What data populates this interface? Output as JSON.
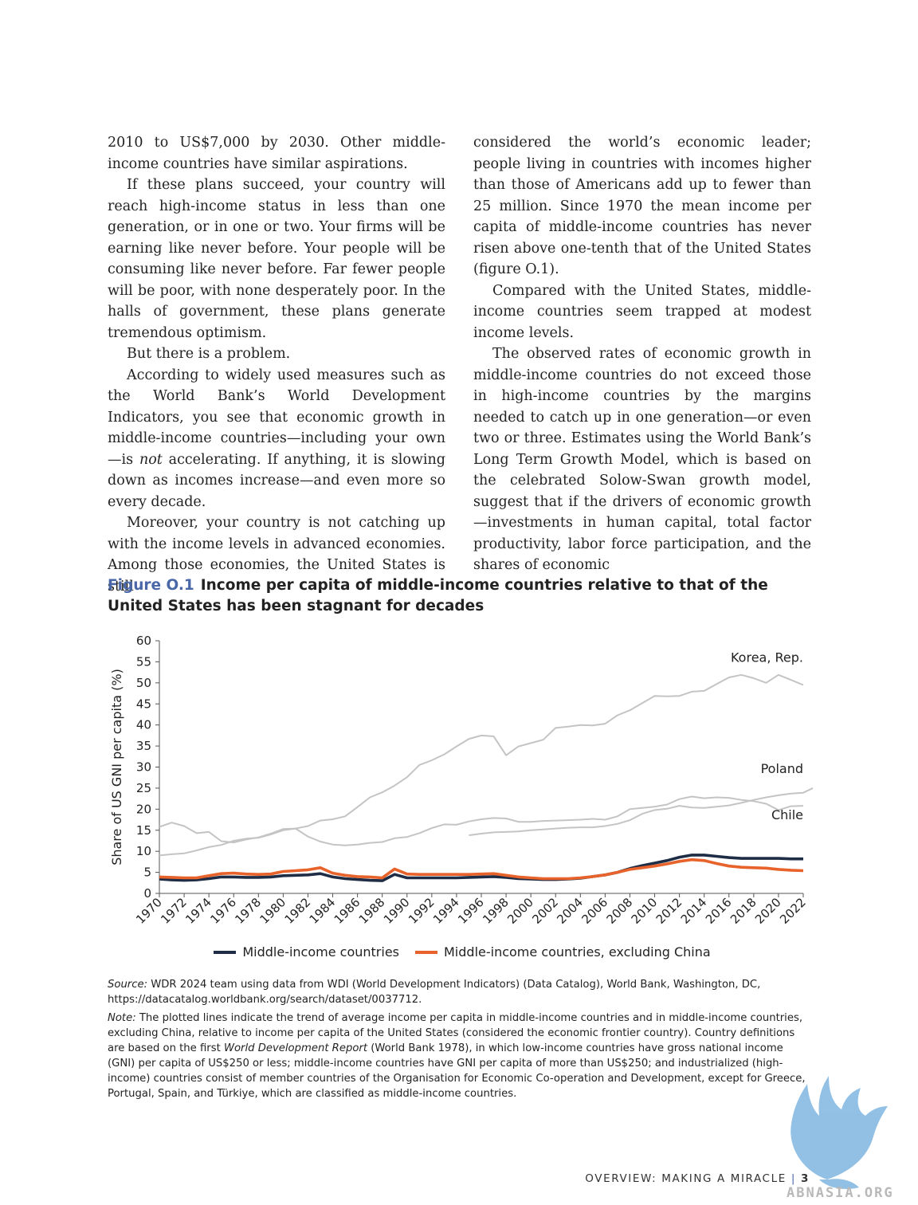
{
  "left_column": [
    "2010 to US$7,000 by 2030. Other middle-income countries have similar aspirations.",
    "If these plans succeed, your country will reach high-income status in less than one generation, or in one or two. Your firms will be earning like never before. Your people will be consuming like never before. Far fewer people will be poor, with none desperately poor. In the halls of government, these plans generate tremendous optimism.",
    "But there is a problem.",
    "According to widely used measures such as the World Bank’s World Development Indicators, you see that economic growth in middle-income countries—including your own—is",
    "not",
    "accelerating. If anything, it is slowing down as incomes increase—and even more so every decade.",
    "Moreover, your country is not catching up with the income levels in advanced economies. Among those economies, the United States is still"
  ],
  "right_column": [
    "considered the world’s economic leader; people living in countries with incomes higher than those of Americans add up to fewer than 25 million. Since 1970 the mean income per capita of middle-income countries has never risen above one-tenth that of the United States (figure O.1).",
    "Compared with the United States, middle-income countries seem trapped at modest income levels.",
    "The observed rates of economic growth in middle-income countries do not exceed those in high-income countries by the margins needed to catch up in one generation—or even two or three. Estimates using the World Bank’s Long Term Growth Model, which is based on the celebrated Solow-Swan growth model, suggest that if the drivers of economic growth—investments in human capital, total factor productivity, labor force participation, and the shares of economic"
  ],
  "figure": {
    "label": "Figure O.1",
    "title": "Income per capita of middle-income countries relative to that of the United States has been stagnant for decades"
  },
  "chart_data": {
    "type": "line",
    "ylabel": "Share of US GNI per capita (%)",
    "xlabel": "",
    "ylim": [
      0,
      60
    ],
    "yticks": [
      0,
      5,
      10,
      15,
      20,
      25,
      30,
      35,
      40,
      45,
      50,
      55,
      60
    ],
    "xlim": [
      1970,
      2022
    ],
    "xticks": [
      1970,
      1972,
      1974,
      1976,
      1978,
      1980,
      1982,
      1984,
      1986,
      1988,
      1990,
      1992,
      1994,
      1996,
      1998,
      2000,
      2002,
      2004,
      2006,
      2008,
      2010,
      2012,
      2014,
      2016,
      2018,
      2020,
      2022
    ],
    "grid": false,
    "legend_position": "bottom",
    "colors": {
      "middle": "#1e2d45",
      "excl_china": "#e8632b",
      "country": "#c4c4c4"
    },
    "series": [
      {
        "name": "Middle-income countries",
        "key": "middle",
        "x_start": 1970,
        "legend": true,
        "values": [
          3.4,
          3.2,
          3.1,
          3.2,
          3.5,
          3.9,
          3.9,
          3.8,
          3.8,
          3.9,
          4.2,
          4.3,
          4.4,
          4.7,
          3.9,
          3.5,
          3.3,
          3.1,
          3.0,
          4.5,
          3.7,
          3.7,
          3.7,
          3.7,
          3.7,
          3.8,
          3.9,
          4.0,
          3.8,
          3.5,
          3.4,
          3.3,
          3.3,
          3.4,
          3.6,
          4.0,
          4.4,
          5.0,
          5.9,
          6.6,
          7.2,
          7.8,
          8.6,
          9.1,
          9.1,
          8.8,
          8.5,
          8.3,
          8.3,
          8.3,
          8.3,
          8.2,
          8.2
        ]
      },
      {
        "name": "Middle-income countries, excluding China",
        "key": "excl_china",
        "x_start": 1970,
        "legend": true,
        "values": [
          3.9,
          3.8,
          3.7,
          3.7,
          4.2,
          4.7,
          4.8,
          4.6,
          4.5,
          4.6,
          5.2,
          5.4,
          5.6,
          6.1,
          4.8,
          4.3,
          4.0,
          3.9,
          3.7,
          5.8,
          4.6,
          4.5,
          4.5,
          4.5,
          4.5,
          4.5,
          4.6,
          4.7,
          4.3,
          3.9,
          3.7,
          3.5,
          3.5,
          3.5,
          3.7,
          4.0,
          4.4,
          5.0,
          5.7,
          6.1,
          6.5,
          7.0,
          7.6,
          8.0,
          7.8,
          7.1,
          6.5,
          6.2,
          6.1,
          6.0,
          5.7,
          5.5,
          5.4
        ]
      },
      {
        "name": "Korea, Rep.",
        "key": "country",
        "x_start": 1970,
        "legend": false,
        "label_year": 2022,
        "label_value": 55,
        "values": [
          9.0,
          9.3,
          9.5,
          10.2,
          11.0,
          11.5,
          12.5,
          13.0,
          13.2,
          14.0,
          15.0,
          15.4,
          16.0,
          17.3,
          17.6,
          18.3,
          20.5,
          22.8,
          24.0,
          25.6,
          27.6,
          30.5,
          31.6,
          33.0,
          34.9,
          36.7,
          37.5,
          37.3,
          32.8,
          34.9,
          35.7,
          36.5,
          39.3,
          39.6,
          40.0,
          39.9,
          40.3,
          42.3,
          43.5,
          45.2,
          46.9,
          46.8,
          46.9,
          47.9,
          48.1,
          49.7,
          51.3,
          51.9,
          51.1,
          50.0,
          51.9,
          50.7,
          49.5
        ]
      },
      {
        "name": "Poland",
        "key": "country",
        "x_start": 1995,
        "legend": false,
        "label_year": 2022,
        "label_value": 28.6,
        "values": [
          13.8,
          14.2,
          14.5,
          14.6,
          14.7,
          15.0,
          15.2,
          15.4,
          15.6,
          15.7,
          15.7,
          16.0,
          16.5,
          17.4,
          18.9,
          19.8,
          20.1,
          20.8,
          20.4,
          20.3,
          20.6,
          20.9,
          21.5,
          22.2,
          22.8,
          23.3,
          23.7,
          23.9,
          25.3
        ]
      },
      {
        "name": "Chile",
        "key": "country",
        "x_start": 1970,
        "legend": false,
        "label_year": 2022,
        "label_value": 17.6,
        "values": [
          15.8,
          16.8,
          16.0,
          14.3,
          14.6,
          12.4,
          12.1,
          12.8,
          13.3,
          14.2,
          15.3,
          15.4,
          13.5,
          12.3,
          11.6,
          11.4,
          11.6,
          12.0,
          12.2,
          13.1,
          13.4,
          14.3,
          15.5,
          16.4,
          16.3,
          17.1,
          17.6,
          17.9,
          17.8,
          17.0,
          17.0,
          17.2,
          17.3,
          17.4,
          17.5,
          17.7,
          17.5,
          18.3,
          20.0,
          20.3,
          20.6,
          21.1,
          22.4,
          23.0,
          22.6,
          22.8,
          22.7,
          22.2,
          21.9,
          21.3,
          19.8,
          20.7,
          20.8
        ]
      }
    ]
  },
  "source_label": "Source:",
  "source_text": "WDR 2024 team using data from WDI (World Development Indicators) (Data Catalog), World Bank, Washington, DC, https://datacatalog.worldbank.org/search/dataset/0037712.",
  "note_label": "Note:",
  "note_text_1": "The plotted lines indicate the trend of average income per capita in middle-income countries and in middle-income countries, excluding China, relative to income per capita of the United States (considered the economic frontier country). Country definitions are based on the first",
  "note_italic": "World Development Report",
  "note_text_2": "(World Bank 1978), in which low-income countries have gross national income (GNI) per capita of US$250 or less; middle-income countries have GNI per capita of more than US$250; and industrialized (high-income) countries consist of member countries of the Organisation for Economic Co-operation and Development, except for Greece, Portugal, Spain, and Türkiye, which are classified as middle-income countries.",
  "footer": {
    "section": "OVERVIEW: MAKING A MIRACLE",
    "separator": "|",
    "page": "3"
  },
  "watermark": {
    "text": "ABNASIA.ORG",
    "icon": "eagle-logo-icon",
    "color": "#7fb6e0"
  }
}
